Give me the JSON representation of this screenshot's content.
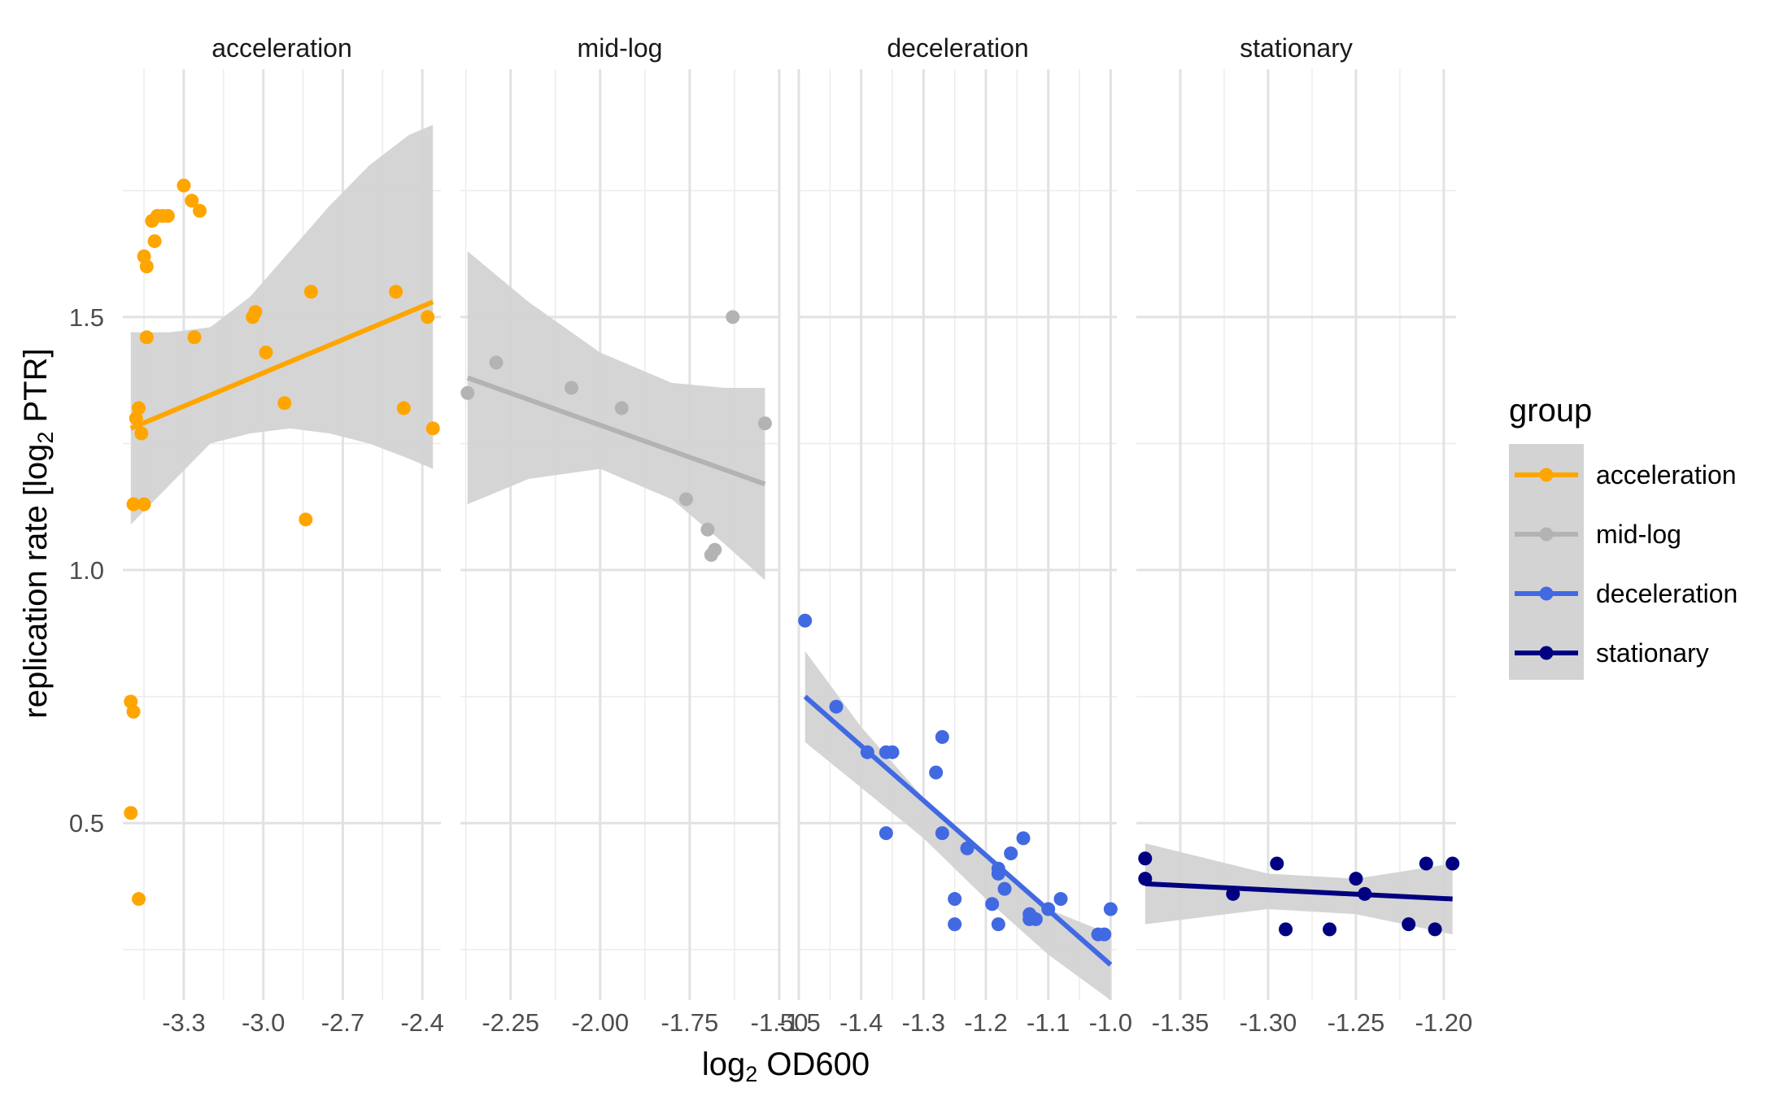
{
  "chart_data": {
    "type": "scatter",
    "facets": [
      "acceleration",
      "mid-log",
      "deceleration",
      "stationary"
    ],
    "xlabel_main": "log",
    "xlabel_sub": "2",
    "xlabel_rest": " OD600",
    "ylabel_main": "replication rate [log",
    "ylabel_sub": "2",
    "ylabel_rest": " PTR]",
    "ylim": [
      0.15,
      1.99
    ],
    "y_ticks": [
      0.5,
      1.0,
      1.5
    ],
    "y_tick_labels": [
      "0.5",
      "1.0",
      "1.5"
    ],
    "grid": true,
    "legend": {
      "title": "group",
      "position": "right",
      "entries": [
        "acceleration",
        "mid-log",
        "deceleration",
        "stationary"
      ]
    },
    "colors": {
      "acceleration": "#FFA500",
      "mid-log": "#B3B3B3",
      "deceleration": "#4169E1",
      "stationary": "#000080",
      "ribbon": "#D3D3D3"
    },
    "panels": [
      {
        "name": "acceleration",
        "xlim": [
          -3.53,
          -2.33
        ],
        "x_ticks": [
          -3.3,
          -3.0,
          -2.7,
          -2.4
        ],
        "x_tick_labels": [
          "-3.3",
          "-3.0",
          "-2.7",
          "-2.4"
        ],
        "points": [
          [
            -3.3,
            1.76
          ],
          [
            -3.27,
            1.73
          ],
          [
            -3.24,
            1.71
          ],
          [
            -3.36,
            1.7
          ],
          [
            -3.4,
            1.7
          ],
          [
            -3.38,
            1.7
          ],
          [
            -3.42,
            1.69
          ],
          [
            -3.41,
            1.65
          ],
          [
            -3.45,
            1.62
          ],
          [
            -3.44,
            1.6
          ],
          [
            -3.44,
            1.46
          ],
          [
            -3.26,
            1.46
          ],
          [
            -2.82,
            1.55
          ],
          [
            -2.5,
            1.55
          ],
          [
            -3.03,
            1.51
          ],
          [
            -3.04,
            1.5
          ],
          [
            -2.38,
            1.5
          ],
          [
            -2.99,
            1.43
          ],
          [
            -2.92,
            1.33
          ],
          [
            -3.47,
            1.32
          ],
          [
            -3.48,
            1.3
          ],
          [
            -2.47,
            1.32
          ],
          [
            -2.36,
            1.28
          ],
          [
            -3.46,
            1.27
          ],
          [
            -3.49,
            1.13
          ],
          [
            -3.45,
            1.13
          ],
          [
            -2.84,
            1.1
          ],
          [
            -3.5,
            0.74
          ],
          [
            -3.49,
            0.72
          ],
          [
            -3.5,
            0.52
          ],
          [
            -3.47,
            0.35
          ]
        ],
        "fit": [
          [
            -3.5,
            1.28
          ],
          [
            -2.36,
            1.53
          ]
        ],
        "ribbon_x": [
          -3.5,
          -3.35,
          -3.2,
          -3.05,
          -2.9,
          -2.75,
          -2.6,
          -2.45,
          -2.36
        ],
        "ribbon_upper": [
          1.47,
          1.47,
          1.48,
          1.54,
          1.63,
          1.72,
          1.8,
          1.86,
          1.88
        ],
        "ribbon_lower": [
          1.09,
          1.17,
          1.25,
          1.27,
          1.28,
          1.27,
          1.25,
          1.22,
          1.2
        ]
      },
      {
        "name": "mid-log",
        "xlim": [
          -2.39,
          -1.5
        ],
        "x_ticks": [
          -2.25,
          -2.0,
          -1.75,
          -1.5
        ],
        "x_tick_labels": [
          "-2.25",
          "-2.00",
          "-1.75",
          "-1.50"
        ],
        "points": [
          [
            -2.37,
            1.35
          ],
          [
            -2.29,
            1.41
          ],
          [
            -2.08,
            1.36
          ],
          [
            -1.94,
            1.32
          ],
          [
            -1.63,
            1.5
          ],
          [
            -1.54,
            1.29
          ],
          [
            -1.76,
            1.14
          ],
          [
            -1.7,
            1.08
          ],
          [
            -1.68,
            1.04
          ],
          [
            -1.69,
            1.03
          ]
        ],
        "fit": [
          [
            -2.37,
            1.38
          ],
          [
            -1.54,
            1.17
          ]
        ],
        "ribbon_x": [
          -2.37,
          -2.2,
          -2.0,
          -1.8,
          -1.65,
          -1.54
        ],
        "ribbon_upper": [
          1.63,
          1.53,
          1.43,
          1.37,
          1.36,
          1.36
        ],
        "ribbon_lower": [
          1.13,
          1.18,
          1.2,
          1.14,
          1.05,
          0.98
        ]
      },
      {
        "name": "deceleration",
        "xlim": [
          -1.5,
          -0.99
        ],
        "x_ticks": [
          -1.5,
          -1.4,
          -1.3,
          -1.2,
          -1.1,
          -1.0
        ],
        "x_tick_labels": [
          "-1.5",
          "-1.4",
          "-1.3",
          "-1.2",
          "-1.1",
          "-1.0"
        ],
        "points": [
          [
            -1.49,
            0.9
          ],
          [
            -1.44,
            0.73
          ],
          [
            -1.39,
            0.64
          ],
          [
            -1.36,
            0.64
          ],
          [
            -1.35,
            0.64
          ],
          [
            -1.27,
            0.67
          ],
          [
            -1.28,
            0.6
          ],
          [
            -1.36,
            0.48
          ],
          [
            -1.27,
            0.48
          ],
          [
            -1.23,
            0.45
          ],
          [
            -1.14,
            0.47
          ],
          [
            -1.16,
            0.44
          ],
          [
            -1.18,
            0.41
          ],
          [
            -1.18,
            0.4
          ],
          [
            -1.17,
            0.37
          ],
          [
            -1.25,
            0.35
          ],
          [
            -1.19,
            0.34
          ],
          [
            -1.08,
            0.35
          ],
          [
            -1.13,
            0.32
          ],
          [
            -1.1,
            0.33
          ],
          [
            -1.12,
            0.31
          ],
          [
            -1.13,
            0.31
          ],
          [
            -1.0,
            0.33
          ],
          [
            -1.25,
            0.3
          ],
          [
            -1.18,
            0.3
          ],
          [
            -1.02,
            0.28
          ],
          [
            -1.01,
            0.28
          ]
        ],
        "fit": [
          [
            -1.49,
            0.75
          ],
          [
            -1.0,
            0.22
          ]
        ],
        "ribbon_x": [
          -1.49,
          -1.4,
          -1.3,
          -1.2,
          -1.1,
          -1.0
        ],
        "ribbon_upper": [
          0.84,
          0.69,
          0.55,
          0.43,
          0.33,
          0.28
        ],
        "ribbon_lower": [
          0.66,
          0.57,
          0.47,
          0.35,
          0.24,
          0.15
        ]
      },
      {
        "name": "stationary",
        "xlim": [
          -1.375,
          -1.193
        ],
        "x_ticks": [
          -1.35,
          -1.3,
          -1.25,
          -1.2
        ],
        "x_tick_labels": [
          "-1.35",
          "-1.30",
          "-1.25",
          "-1.20"
        ],
        "points": [
          [
            -1.37,
            0.43
          ],
          [
            -1.37,
            0.39
          ],
          [
            -1.32,
            0.36
          ],
          [
            -1.295,
            0.42
          ],
          [
            -1.29,
            0.29
          ],
          [
            -1.265,
            0.29
          ],
          [
            -1.25,
            0.39
          ],
          [
            -1.245,
            0.36
          ],
          [
            -1.22,
            0.3
          ],
          [
            -1.21,
            0.42
          ],
          [
            -1.205,
            0.29
          ],
          [
            -1.195,
            0.42
          ]
        ],
        "fit": [
          [
            -1.37,
            0.38
          ],
          [
            -1.195,
            0.35
          ]
        ],
        "ribbon_x": [
          -1.37,
          -1.3,
          -1.25,
          -1.195
        ],
        "ribbon_upper": [
          0.46,
          0.4,
          0.39,
          0.42
        ],
        "ribbon_lower": [
          0.3,
          0.33,
          0.32,
          0.28
        ]
      }
    ]
  }
}
